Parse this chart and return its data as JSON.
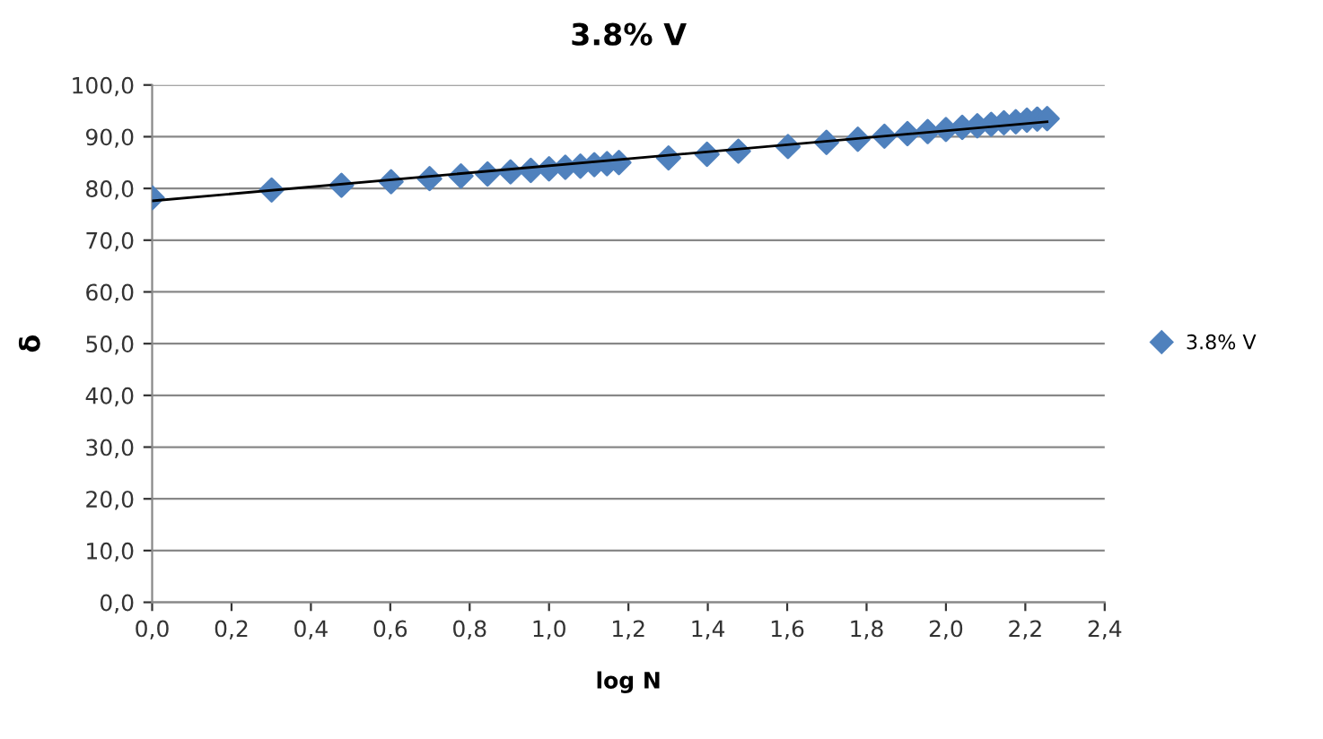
{
  "chart_data": {
    "type": "scatter",
    "title": "3.8% V",
    "xlabel": "log N",
    "ylabel": "δ",
    "xlim": [
      0,
      2.4
    ],
    "xticks": [
      {
        "value": 0,
        "label": "0,0"
      },
      {
        "value": 0.2,
        "label": "0,2"
      },
      {
        "value": 0.4,
        "label": "0,4"
      },
      {
        "value": 0.6,
        "label": "0,6"
      },
      {
        "value": 0.8,
        "label": "0,8"
      },
      {
        "value": 1.0,
        "label": "1,0"
      },
      {
        "value": 1.2,
        "label": "1,2"
      },
      {
        "value": 1.4,
        "label": "1,4"
      },
      {
        "value": 1.6,
        "label": "1,6"
      },
      {
        "value": 1.8,
        "label": "1,8"
      },
      {
        "value": 2.0,
        "label": "2,0"
      },
      {
        "value": 2.2,
        "label": "2,2"
      },
      {
        "value": 2.4,
        "label": "2,4"
      }
    ],
    "ylim": [
      0,
      100
    ],
    "yticks": [
      {
        "value": 0,
        "label": "0,0"
      },
      {
        "value": 10,
        "label": "10,0"
      },
      {
        "value": 20,
        "label": "20,0"
      },
      {
        "value": 30,
        "label": "30,0"
      },
      {
        "value": 40,
        "label": "40,0"
      },
      {
        "value": 50,
        "label": "50,0"
      },
      {
        "value": 60,
        "label": "60,0"
      },
      {
        "value": 70,
        "label": "70,0"
      },
      {
        "value": 80,
        "label": "80,0"
      },
      {
        "value": 90,
        "label": "90,0"
      },
      {
        "value": 100,
        "label": "100,0"
      }
    ],
    "grid": "y",
    "legend": "right",
    "series": [
      {
        "name": "3.8% V",
        "color": "#4f81bd",
        "marker": "diamond",
        "x": [
          0,
          0.301,
          0.477,
          0.602,
          0.699,
          0.778,
          0.845,
          0.903,
          0.954,
          1.0,
          1.041,
          1.079,
          1.114,
          1.146,
          1.176,
          1.301,
          1.398,
          1.477,
          1.602,
          1.699,
          1.778,
          1.845,
          1.903,
          1.954,
          2.0,
          2.041,
          2.079,
          2.114,
          2.146,
          2.176,
          2.204,
          2.23,
          2.255
        ],
        "values": [
          78.2,
          79.7,
          80.6,
          81.3,
          81.9,
          82.4,
          82.8,
          83.2,
          83.5,
          83.8,
          84.1,
          84.3,
          84.6,
          84.8,
          85.0,
          85.9,
          86.6,
          87.2,
          88.1,
          88.9,
          89.5,
          90.1,
          90.6,
          91.0,
          91.4,
          91.8,
          92.1,
          92.4,
          92.7,
          92.9,
          93.2,
          93.4,
          93.5
        ]
      },
      {
        "type": "line",
        "color": "#000000",
        "marker": "none",
        "x": [
          0,
          2.255
        ],
        "values": [
          77.6,
          92.9
        ]
      }
    ]
  }
}
